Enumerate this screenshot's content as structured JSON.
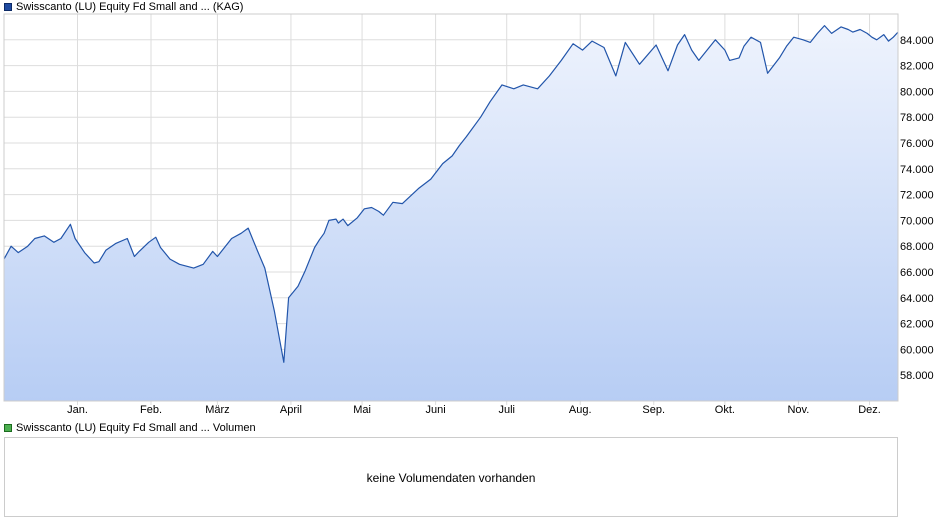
{
  "legend": {
    "price_label": "Swisscanto (LU) Equity Fd Small and ... (KAG)",
    "volume_label": "Swisscanto (LU) Equity Fd Small and ... Volumen"
  },
  "volume_panel": {
    "message": "keine Volumendaten vorhanden"
  },
  "colors": {
    "line": "#2255aa",
    "fill_top": "#eef3fd",
    "fill_bottom": "#b7cdf4",
    "grid": "#dddddd",
    "price_swatch": "#1f4aa0",
    "volume_swatch": "#4caf50"
  },
  "chart_data": {
    "type": "area",
    "title": "",
    "xlabel": "",
    "ylabel": "",
    "ylim": [
      56.0,
      86.0
    ],
    "grid": true,
    "y_ticks": [
      58,
      60,
      62,
      64,
      66,
      68,
      70,
      72,
      74,
      76,
      78,
      80,
      82,
      84
    ],
    "y_tick_labels": [
      "58.000",
      "60.000",
      "62.000",
      "64.000",
      "66.000",
      "68.000",
      "70.000",
      "72.000",
      "74.000",
      "76.000",
      "78.000",
      "80.000",
      "82.000",
      "84.000"
    ],
    "x_tick_labels": [
      "Jan.",
      "Feb.",
      "März",
      "April",
      "Mai",
      "Juni",
      "Juli",
      "Aug.",
      "Sep.",
      "Okt.",
      "Nov.",
      "Dez."
    ],
    "x_tick_positions": [
      31,
      62,
      90,
      121,
      151,
      182,
      212,
      243,
      274,
      304,
      335,
      365
    ],
    "x_range": [
      0,
      377
    ],
    "series": [
      {
        "x": [
          0,
          3,
          6,
          10,
          13,
          17,
          21,
          24,
          28,
          30,
          34,
          38,
          40,
          43,
          47,
          52,
          55,
          57,
          61,
          64,
          66,
          70,
          74,
          80,
          84,
          88,
          90,
          93,
          96,
          100,
          103,
          107,
          110,
          114,
          118,
          120,
          124,
          127,
          131,
          133,
          135,
          137,
          140,
          141,
          143,
          145,
          149,
          152,
          155,
          158,
          160,
          164,
          168,
          175,
          180,
          185,
          189,
          192,
          195,
          201,
          205,
          210,
          215,
          219,
          225,
          230,
          235,
          240,
          244,
          248,
          253,
          258,
          262,
          268,
          275,
          280,
          284,
          287,
          290,
          293,
          300,
          304,
          306,
          310,
          312,
          315,
          319,
          322,
          327,
          330,
          333,
          337,
          340,
          343,
          346,
          349,
          353,
          356,
          358,
          361,
          364,
          366,
          368,
          371,
          373,
          375,
          377
        ],
        "values": [
          67.0,
          68.0,
          67.5,
          68.0,
          68.6,
          68.8,
          68.3,
          68.6,
          69.7,
          68.6,
          67.5,
          66.7,
          66.8,
          67.7,
          68.2,
          68.6,
          67.2,
          67.6,
          68.3,
          68.7,
          67.9,
          67.0,
          66.6,
          66.3,
          66.6,
          67.6,
          67.2,
          67.9,
          68.6,
          69.0,
          69.4,
          67.6,
          66.3,
          63.0,
          59.0,
          64.0,
          64.9,
          66.1,
          67.9,
          68.5,
          69.0,
          70.0,
          70.1,
          69.8,
          70.1,
          69.6,
          70.2,
          70.9,
          71.0,
          70.7,
          70.4,
          71.4,
          71.3,
          72.5,
          73.2,
          74.4,
          75.0,
          75.8,
          76.5,
          78.0,
          79.2,
          80.5,
          80.2,
          80.5,
          80.2,
          81.2,
          82.4,
          83.7,
          83.2,
          83.9,
          83.4,
          81.2,
          83.8,
          82.1,
          83.6,
          81.6,
          83.6,
          84.4,
          83.2,
          82.4,
          84.0,
          83.2,
          82.4,
          82.6,
          83.5,
          84.2,
          83.8,
          81.4,
          82.6,
          83.5,
          84.2,
          84.0,
          83.8,
          84.5,
          85.1,
          84.5,
          85.0,
          84.8,
          84.6,
          84.8,
          84.5,
          84.2,
          84.0,
          84.4,
          83.9,
          84.2,
          84.6
        ]
      }
    ]
  }
}
